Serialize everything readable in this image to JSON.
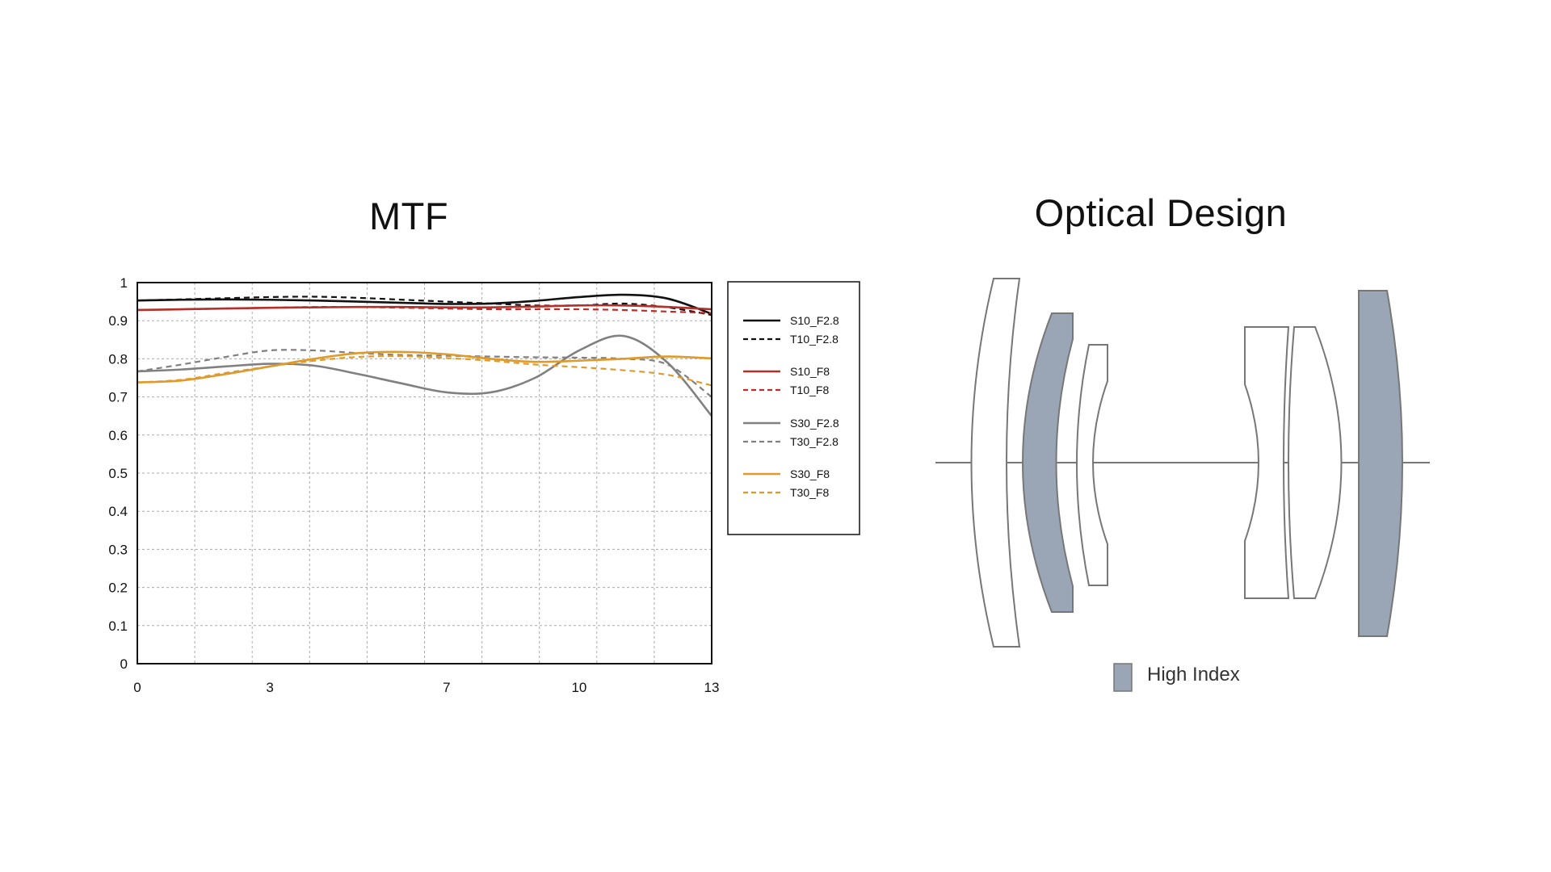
{
  "mtf": {
    "title": "MTF"
  },
  "optical": {
    "title": "Optical Design",
    "legend_label": "High Index",
    "high_index_color": "#9aa6b5"
  },
  "chart_data": {
    "type": "line",
    "title": "MTF",
    "xlabel": "",
    "ylabel": "",
    "xlim": [
      0,
      13
    ],
    "ylim": [
      0,
      1
    ],
    "x_ticks": [
      0,
      3,
      7,
      10,
      13
    ],
    "x_tick_labels": [
      "0",
      "3",
      "7",
      "10",
      "13"
    ],
    "y_ticks": [
      0,
      0.1,
      0.2,
      0.3,
      0.4,
      0.5,
      0.6,
      0.7,
      0.8,
      0.9,
      1
    ],
    "y_tick_labels": [
      "0",
      "0.1",
      "0.2",
      "0.3",
      "0.4",
      "0.5",
      "0.6",
      "0.7",
      "0.8",
      "0.9",
      "1"
    ],
    "grid": true,
    "legend_position": "right",
    "x": [
      0,
      1,
      2,
      3,
      4,
      5,
      6,
      7,
      8,
      9,
      10,
      11,
      12,
      13
    ],
    "series": [
      {
        "name": "S10_F2.8",
        "color": "#111111",
        "dash": false,
        "values": [
          0.953,
          0.955,
          0.956,
          0.955,
          0.953,
          0.95,
          0.947,
          0.944,
          0.945,
          0.952,
          0.962,
          0.968,
          0.958,
          0.918
        ]
      },
      {
        "name": "T10_F2.8",
        "color": "#111111",
        "dash": true,
        "values": [
          0.953,
          0.956,
          0.959,
          0.962,
          0.963,
          0.96,
          0.955,
          0.95,
          0.945,
          0.94,
          0.94,
          0.945,
          0.935,
          0.915
        ]
      },
      {
        "name": "S10_F8",
        "color": "#b5302a",
        "dash": false,
        "values": [
          0.928,
          0.93,
          0.932,
          0.934,
          0.935,
          0.936,
          0.936,
          0.935,
          0.935,
          0.937,
          0.94,
          0.94,
          0.936,
          0.93
        ]
      },
      {
        "name": "T10_F8",
        "color": "#b5302a",
        "dash": true,
        "values": [
          0.928,
          0.93,
          0.932,
          0.934,
          0.936,
          0.936,
          0.934,
          0.932,
          0.93,
          0.93,
          0.93,
          0.928,
          0.924,
          0.92
        ]
      },
      {
        "name": "S30_F2.8",
        "color": "#808080",
        "dash": false,
        "values": [
          0.767,
          0.772,
          0.78,
          0.787,
          0.782,
          0.76,
          0.735,
          0.712,
          0.712,
          0.75,
          0.822,
          0.86,
          0.79,
          0.65
        ]
      },
      {
        "name": "T30_F2.8",
        "color": "#808080",
        "dash": true,
        "values": [
          0.767,
          0.785,
          0.805,
          0.822,
          0.822,
          0.815,
          0.81,
          0.808,
          0.806,
          0.804,
          0.803,
          0.8,
          0.785,
          0.7
        ]
      },
      {
        "name": "S30_F8",
        "color": "#e09a2c",
        "dash": false,
        "values": [
          0.738,
          0.743,
          0.76,
          0.78,
          0.8,
          0.815,
          0.818,
          0.812,
          0.8,
          0.792,
          0.795,
          0.8,
          0.806,
          0.801
        ]
      },
      {
        "name": "T30_F8",
        "color": "#e09a2c",
        "dash": true,
        "values": [
          0.738,
          0.745,
          0.763,
          0.78,
          0.795,
          0.805,
          0.807,
          0.802,
          0.795,
          0.785,
          0.778,
          0.77,
          0.758,
          0.73
        ]
      }
    ]
  }
}
